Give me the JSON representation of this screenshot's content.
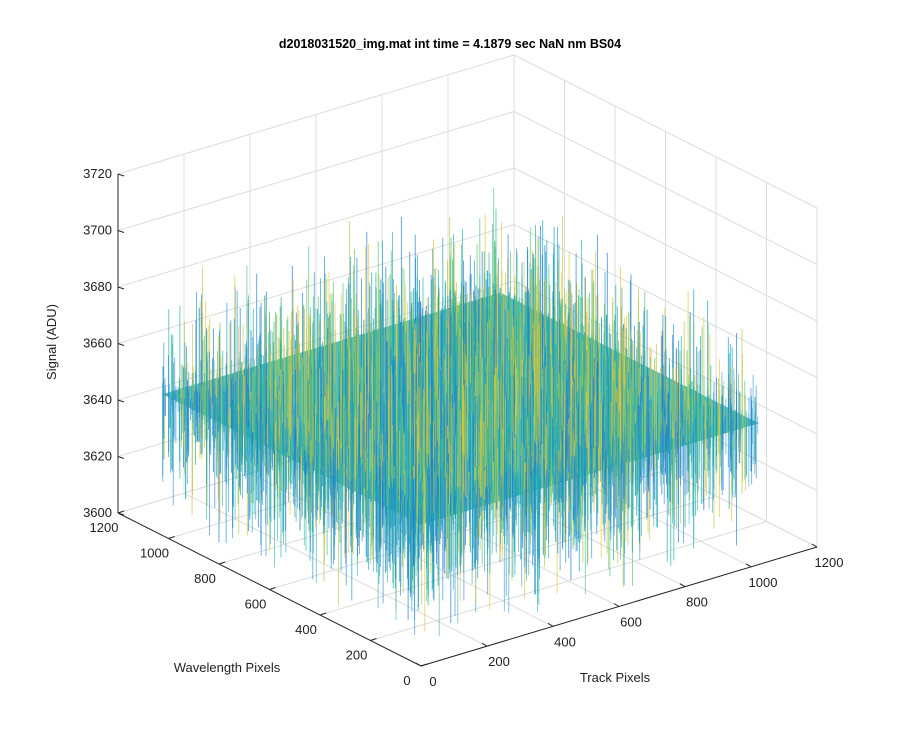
{
  "chart_data": {
    "type": "surface",
    "title": "d2018031520_img.mat int time = 4.1879 sec  NaN nm BS04",
    "xlabel": "Track Pixels",
    "ylabel": "Wavelength Pixels",
    "zlabel": "Signal (ADU)",
    "xlim": [
      0,
      1200
    ],
    "ylim": [
      0,
      1200
    ],
    "zlim": [
      3600,
      3720
    ],
    "xticks": [
      "0",
      "200",
      "400",
      "600",
      "800",
      "1000",
      "1200"
    ],
    "yticks": [
      "0",
      "200",
      "400",
      "600",
      "800",
      "1000",
      "1200"
    ],
    "zticks": [
      "3600",
      "3620",
      "3640",
      "3660",
      "3680",
      "3700",
      "3720"
    ],
    "data_extent": {
      "x": [
        0,
        1024
      ],
      "y": [
        0,
        1024
      ]
    },
    "signal_mean": 3650,
    "signal_range": [
      3605,
      3705
    ],
    "grid": true,
    "colormap": [
      "#1f7bd6",
      "#1c9cc8",
      "#21b3a8",
      "#5cc07a",
      "#b9c84a",
      "#e6c63a"
    ]
  }
}
